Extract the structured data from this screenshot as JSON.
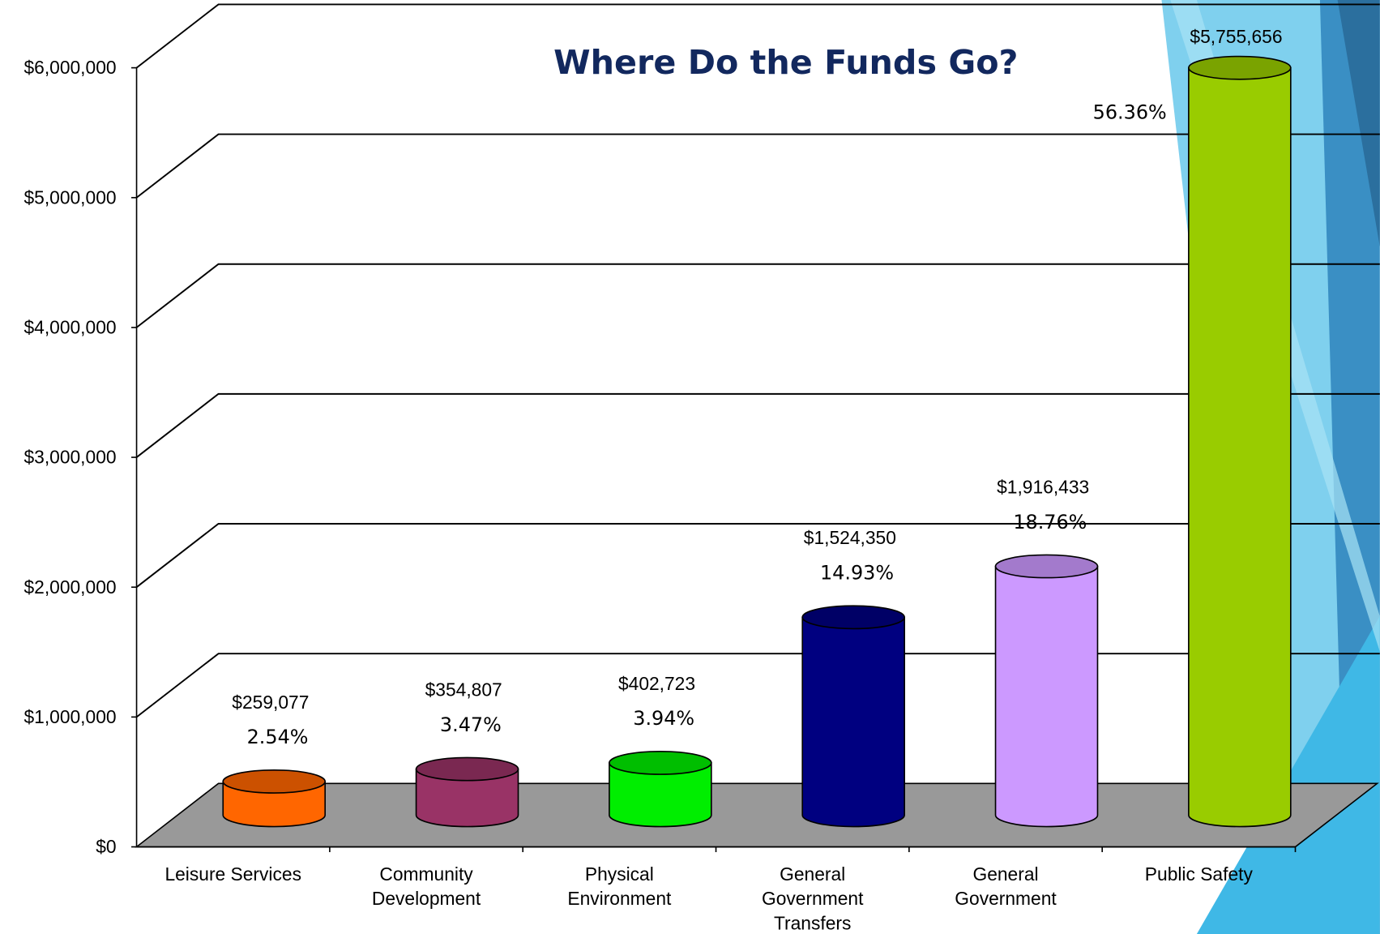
{
  "chart_data": {
    "type": "bar3d",
    "title": "Where Do the Funds Go?",
    "categories": [
      "Leisure Services",
      "Community\nDevelopment",
      "Physical\nEnvironment",
      "General\nGovernment\nTransfers",
      "General\nGovernment",
      "Public Safety"
    ],
    "values": [
      259077,
      354807,
      402723,
      1524350,
      1916433,
      5755656
    ],
    "value_labels": [
      "$259,077",
      "$354,807",
      "$402,723",
      "$1,524,350",
      "$1,916,433",
      "$5,755,656"
    ],
    "percentages": [
      2.54,
      3.47,
      3.94,
      14.93,
      18.76,
      56.36
    ],
    "percentage_labels": [
      "2.54%",
      "3.47%",
      "3.94%",
      "14.93%",
      "18.76%",
      "56.36%"
    ],
    "colors": [
      "#ff6600",
      "#993366",
      "#00ee00",
      "#000080",
      "#cc99ff",
      "#99cc00"
    ],
    "ylim": [
      0,
      6000000
    ],
    "yticks": [
      {
        "value": 0,
        "label": "$0"
      },
      {
        "value": 1000000,
        "label": "$1,000,000"
      },
      {
        "value": 2000000,
        "label": "$2,000,000"
      },
      {
        "value": 3000000,
        "label": "$3,000,000"
      },
      {
        "value": 4000000,
        "label": "$4,000,000"
      },
      {
        "value": 5000000,
        "label": "$5,000,000"
      },
      {
        "value": 6000000,
        "label": "$6,000,000"
      }
    ],
    "grid": true
  }
}
